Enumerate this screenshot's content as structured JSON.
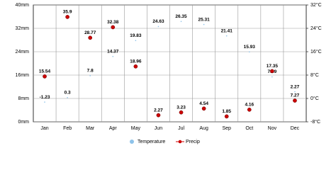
{
  "chart_data": {
    "type": "line",
    "categories": [
      "Jan",
      "Feb",
      "Mar",
      "Apr",
      "May",
      "Jun",
      "Jul",
      "Aug",
      "Sep",
      "Oct",
      "Nov",
      "Dec"
    ],
    "series": [
      {
        "name": "Temperature",
        "color": "#8ec3ea",
        "axis": "y2",
        "values": [
          -1.23,
          0.3,
          7.8,
          14.37,
          19.83,
          24.63,
          26.35,
          25.31,
          21.41,
          15.93,
          7.39,
          2.27
        ]
      },
      {
        "name": "Precip",
        "color": "#cc0000",
        "values": [
          15.54,
          35.9,
          28.77,
          32.38,
          18.96,
          2.27,
          3.23,
          4.54,
          1.85,
          4.16,
          17.35,
          7.27
        ]
      }
    ],
    "ylim": [
      0,
      40
    ],
    "yticks": [
      {
        "value": 0,
        "label": "0mm"
      },
      {
        "value": 8,
        "label": "8mm"
      },
      {
        "value": 16,
        "label": "16mm"
      },
      {
        "value": 24,
        "label": "24mm"
      },
      {
        "value": 32,
        "label": "32mm"
      },
      {
        "value": 40,
        "label": "40mm"
      }
    ],
    "y2lim": [
      -8,
      32
    ],
    "y2ticks": [
      {
        "value": -8,
        "label": "-8°C"
      },
      {
        "value": 0,
        "label": "0°C"
      },
      {
        "value": 8,
        "label": "8°C"
      },
      {
        "value": 16,
        "label": "16°C"
      },
      {
        "value": 24,
        "label": "24°C"
      },
      {
        "value": 32,
        "label": "32°C"
      }
    ],
    "grid": true
  }
}
